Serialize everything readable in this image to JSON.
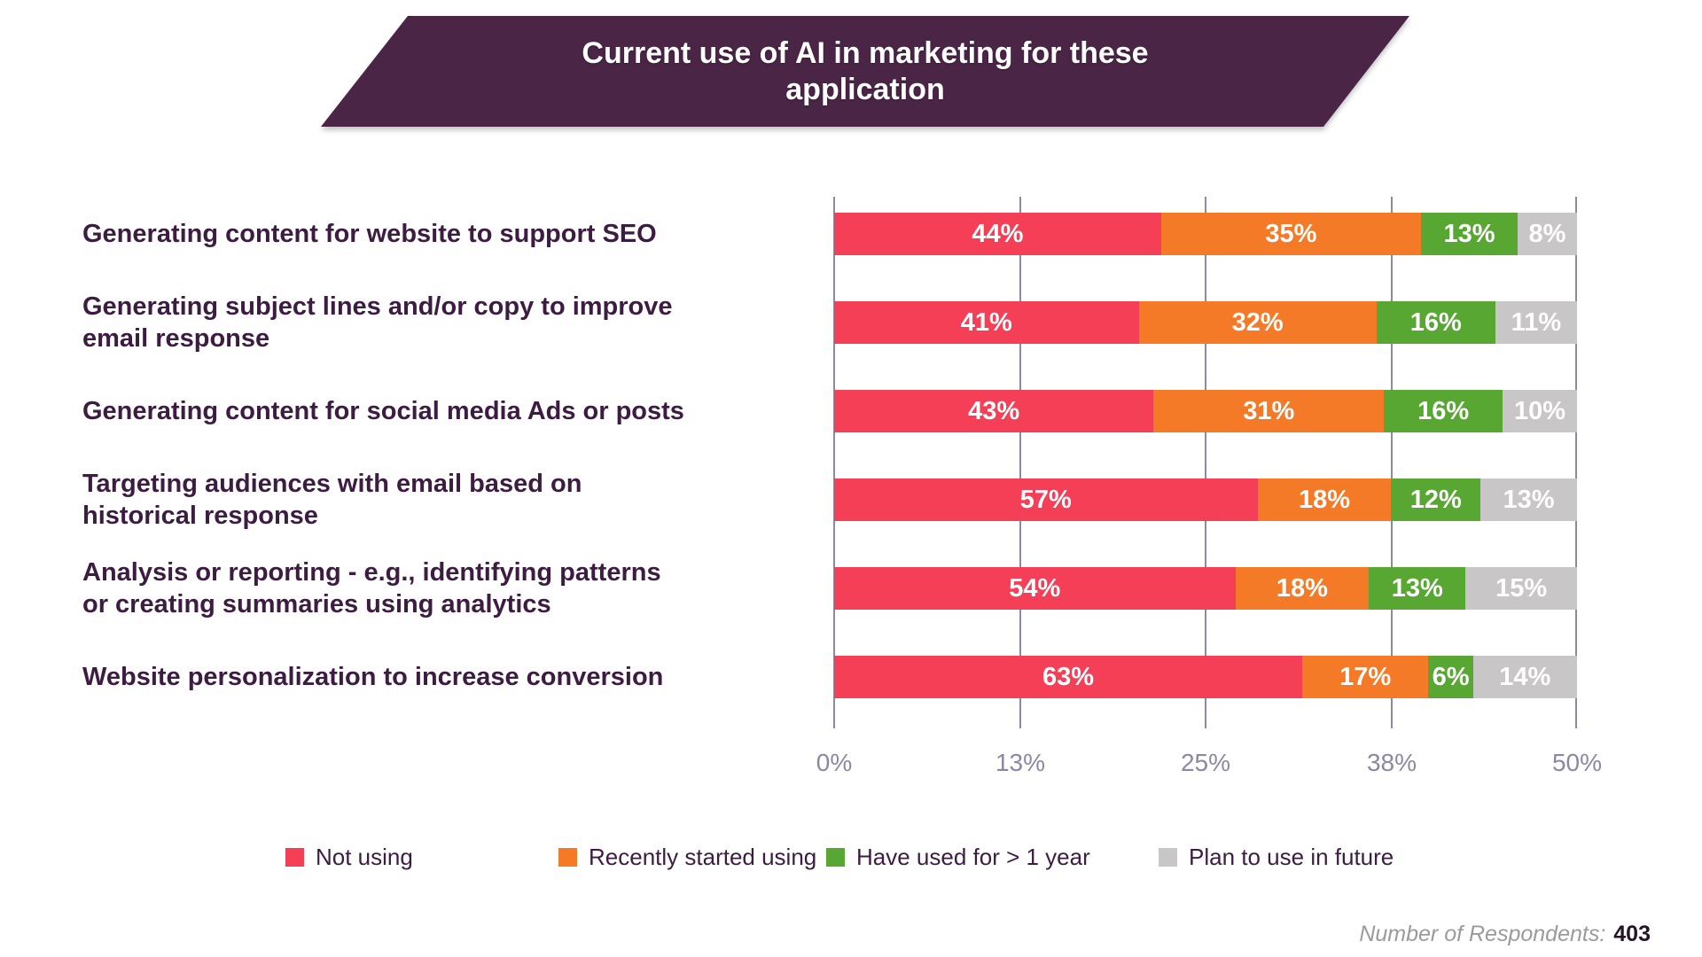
{
  "title": {
    "line1": "Current use of AI in marketing for these",
    "line2": "application"
  },
  "chart_data": {
    "type": "bar",
    "orientation": "horizontal",
    "stacked": true,
    "title": "Current use of AI in marketing for these application",
    "categories": [
      "Generating content for website to support SEO",
      "Generating subject lines and/or copy to improve\nemail response",
      "Generating content for social media Ads or posts",
      "Targeting audiences with email based on\nhistorical response",
      "Analysis or reporting - e.g., identifying patterns\nor creating summaries using analytics",
      "Website personalization to increase conversion"
    ],
    "series": [
      {
        "name": "Not using",
        "color": "#F43F57",
        "values": [
          44,
          41,
          43,
          57,
          54,
          63
        ]
      },
      {
        "name": "Recently started using",
        "color": "#F57A28",
        "values": [
          35,
          32,
          31,
          18,
          18,
          17
        ]
      },
      {
        "name": "Have used for > 1 year",
        "color": "#58A733",
        "values": [
          13,
          16,
          16,
          12,
          13,
          6
        ]
      },
      {
        "name": "Plan to use in future",
        "color": "#C8C6C6",
        "values": [
          8,
          11,
          10,
          13,
          15,
          14
        ]
      }
    ],
    "value_suffix": "%",
    "x_ticks": [
      "0%",
      "13%",
      "25%",
      "38%",
      "50%"
    ],
    "legend_position": "bottom",
    "grid": "vertical"
  },
  "footer": {
    "label": "Number of Respondents:",
    "value": "403"
  },
  "colors": {
    "banner_bg": "#4A2546",
    "category_text": "#3D1C42",
    "axis_text": "#8D87A3",
    "gridline": "#8E87A5",
    "bar_value_text": "#FFFFFF",
    "legend_text": "#3D1C42",
    "footer_label": "#9B9B9B",
    "footer_value": "#241526"
  }
}
